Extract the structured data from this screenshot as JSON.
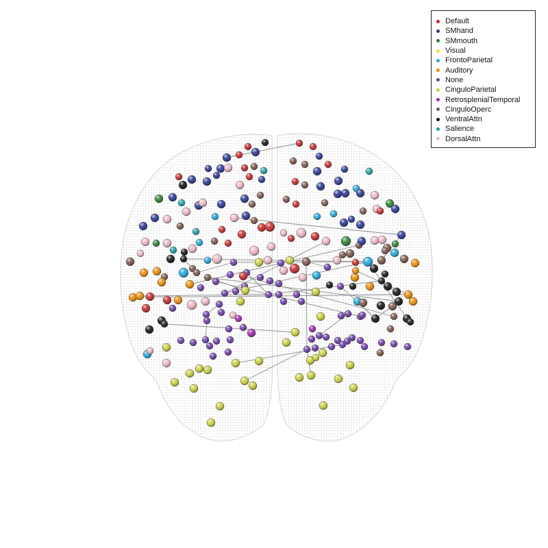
{
  "legend": {
    "items": [
      {
        "label": "Default",
        "color": "#c62828"
      },
      {
        "label": "SMhand",
        "color": "#283593"
      },
      {
        "label": "SMmouth",
        "color": "#2e7d32"
      },
      {
        "label": "Visual",
        "color": "#f5e22a"
      },
      {
        "label": "FrontoParietal",
        "color": "#1ea7d8"
      },
      {
        "label": "Auditory",
        "color": "#ee8a00"
      },
      {
        "label": "None",
        "color": "#6a3ca8"
      },
      {
        "label": "CinguloParietal",
        "color": "#c8cf3a"
      },
      {
        "label": "RetrosplenialTemporal",
        "color": "#9c27b0"
      },
      {
        "label": "CinguloOperc",
        "color": "#795548"
      },
      {
        "label": "VentralAttn",
        "color": "#111111"
      },
      {
        "label": "Salience",
        "color": "#18a0a0"
      },
      {
        "label": "DorsalAttn",
        "color": "#efb8c4"
      }
    ]
  }
}
